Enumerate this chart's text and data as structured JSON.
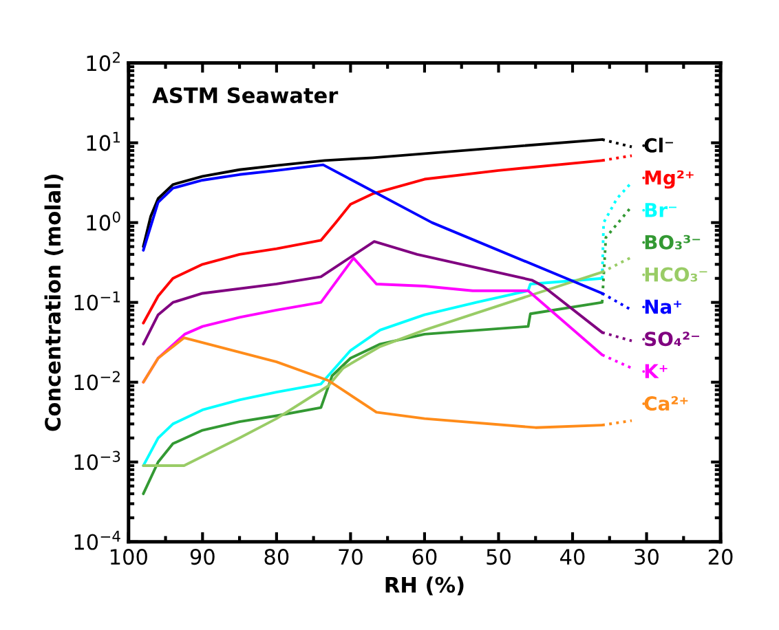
{
  "chart_data": {
    "type": "line",
    "title": "ASTM Seawater",
    "xlabel": "RH (%)",
    "ylabel": "Concentration (molal)",
    "log": "y",
    "xlim": [
      100,
      20
    ],
    "xticks": [
      100,
      90,
      80,
      70,
      60,
      50,
      40,
      30,
      20
    ],
    "ylim": [
      0.0001,
      100
    ],
    "yticks": [
      {
        "value": 0.0001,
        "label": "10$^{−4}$"
      },
      {
        "value": 0.001,
        "label": "10$^{−3}$"
      },
      {
        "value": 0.01,
        "label": "10$^{−2}$"
      },
      {
        "value": 0.1,
        "label": "10$^{−1}$"
      },
      {
        "value": 1,
        "label": "10$^{0}$"
      },
      {
        "value": 10,
        "label": "10$^{1}$"
      },
      {
        "value": 100,
        "label": "10$^{2}$"
      }
    ],
    "grid": false,
    "legend": "right",
    "line_style": "solid",
    "marker": "none",
    "series": [
      {
        "name": "Cl⁻",
        "color": "#000000",
        "x": [
          98,
          97,
          96,
          94,
          90,
          85,
          80,
          73.5,
          67,
          36
        ],
        "values": [
          0.5,
          1.2,
          2.0,
          3.0,
          3.8,
          4.6,
          5.2,
          6.0,
          6.5,
          11
        ]
      },
      {
        "color": "#000000",
        "line_style": "dotted",
        "x": [
          36,
          32
        ],
        "values": [
          11,
          8.9
        ]
      },
      {
        "name": "Mg²⁺",
        "color": "#ff0000",
        "x": [
          98,
          96,
          94,
          90,
          85,
          80,
          74,
          72,
          70,
          67,
          60,
          50,
          36
        ],
        "values": [
          0.055,
          0.12,
          0.2,
          0.3,
          0.4,
          0.47,
          0.6,
          1.0,
          1.7,
          2.3,
          3.5,
          4.5,
          6.0
        ]
      },
      {
        "color": "#ff0000",
        "line_style": "dotted",
        "x": [
          36,
          32
        ],
        "values": [
          6.0,
          6.9
        ]
      },
      {
        "name": "Br⁻",
        "color": "#00ffff",
        "x": [
          98,
          96,
          94,
          90,
          85,
          80,
          74,
          70,
          66,
          60,
          53,
          46,
          45.7,
          36
        ],
        "values": [
          0.0009,
          0.002,
          0.003,
          0.0045,
          0.006,
          0.0075,
          0.0095,
          0.025,
          0.045,
          0.07,
          0.1,
          0.14,
          0.17,
          0.2
        ]
      },
      {
        "color": "#00ffff",
        "line_style": "dotted",
        "x": [
          36,
          35.8,
          34,
          32
        ],
        "values": [
          0.2,
          1.0,
          2.0,
          3.2
        ]
      },
      {
        "name": "BO₃³⁻",
        "color": "#339933",
        "x": [
          98,
          96,
          94,
          90,
          85,
          80,
          74,
          72.5,
          70,
          66,
          60,
          46,
          45.7,
          36
        ],
        "values": [
          0.0004,
          0.001,
          0.0017,
          0.0025,
          0.0032,
          0.0038,
          0.0048,
          0.012,
          0.02,
          0.03,
          0.04,
          0.05,
          0.072,
          0.1
        ]
      },
      {
        "color": "#339933",
        "line_style": "dotted",
        "x": [
          36,
          35.5,
          32
        ],
        "values": [
          0.1,
          0.65,
          1.6
        ]
      },
      {
        "name": "HCO₃⁻",
        "color": "#99cc66",
        "x": [
          98,
          92.5,
          85,
          80,
          73,
          71,
          66,
          60,
          46,
          36
        ],
        "values": [
          0.0009,
          0.0009,
          0.002,
          0.0035,
          0.009,
          0.015,
          0.028,
          0.045,
          0.12,
          0.24
        ]
      },
      {
        "color": "#99cc66",
        "line_style": "dotted",
        "x": [
          36,
          32
        ],
        "values": [
          0.24,
          0.37
        ]
      },
      {
        "name": "Na⁺",
        "color": "#0000ff",
        "x": [
          98,
          96,
          94,
          90,
          85,
          80,
          73.7,
          59,
          36
        ],
        "values": [
          0.45,
          1.8,
          2.7,
          3.4,
          4.0,
          4.5,
          5.3,
          1.0,
          0.13
        ]
      },
      {
        "color": "#0000ff",
        "line_style": "dotted",
        "x": [
          36,
          32
        ],
        "values": [
          0.13,
          0.08
        ]
      },
      {
        "name": "SO₄²⁻",
        "color": "#800080",
        "x": [
          98,
          96,
          94,
          90,
          80,
          74,
          66.8,
          61,
          45.5,
          44,
          36
        ],
        "values": [
          0.03,
          0.07,
          0.1,
          0.13,
          0.17,
          0.21,
          0.58,
          0.4,
          0.19,
          0.16,
          0.042
        ]
      },
      {
        "color": "#800080",
        "line_style": "dotted",
        "x": [
          36,
          32
        ],
        "values": [
          0.042,
          0.033
        ]
      },
      {
        "name": "K⁺",
        "color": "#ff00ff",
        "x": [
          98,
          96,
          92.4,
          90,
          85,
          80,
          74,
          69.6,
          66.5,
          60,
          53.5,
          46,
          36
        ],
        "values": [
          0.01,
          0.02,
          0.04,
          0.05,
          0.065,
          0.08,
          0.1,
          0.36,
          0.17,
          0.16,
          0.14,
          0.14,
          0.022
        ]
      },
      {
        "color": "#ff00ff",
        "line_style": "dotted",
        "x": [
          36,
          32
        ],
        "values": [
          0.022,
          0.015
        ]
      },
      {
        "name": "Ca²⁺",
        "color": "#ff8c1a",
        "x": [
          98,
          96,
          92.5,
          80,
          73,
          66.5,
          60,
          45,
          36
        ],
        "values": [
          0.01,
          0.02,
          0.036,
          0.018,
          0.0105,
          0.0042,
          0.0035,
          0.0027,
          0.0029
        ]
      },
      {
        "color": "#ff8c1a",
        "line_style": "dotted",
        "x": [
          36,
          32
        ],
        "values": [
          0.0029,
          0.0033
        ]
      }
    ]
  }
}
